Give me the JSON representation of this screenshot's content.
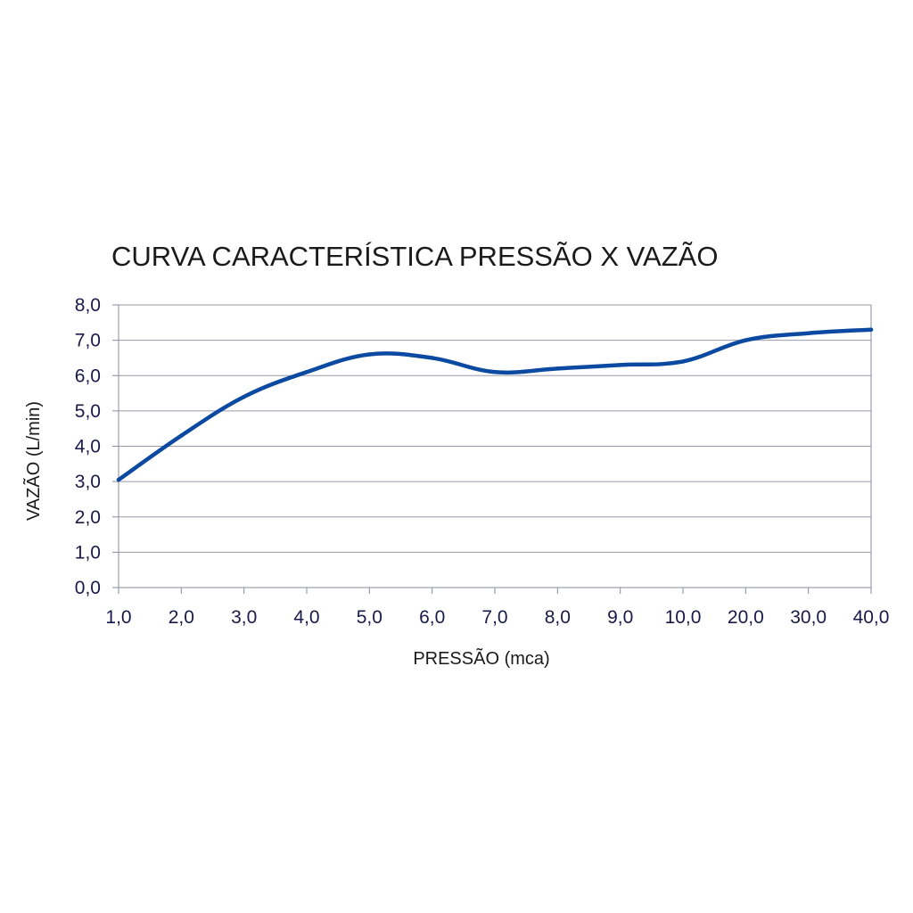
{
  "chart_data": {
    "type": "line",
    "title": "CURVA CARACTERÍSTICA PRESSÃO X VAZÃO",
    "xlabel": "PRESSÃO (mca)",
    "ylabel": "VAZÃO (L/min)",
    "categories": [
      "1,0",
      "2,0",
      "3,0",
      "4,0",
      "5,0",
      "6,0",
      "7,0",
      "8,0",
      "9,0",
      "10,0",
      "20,0",
      "30,0",
      "40,0"
    ],
    "x_axis_kind": "category",
    "ylim": [
      0,
      8
    ],
    "y_ticks": [
      "0,0",
      "1,0",
      "2,0",
      "3,0",
      "4,0",
      "5,0",
      "6,0",
      "7,0",
      "8,0"
    ],
    "y_tick_values": [
      0,
      1,
      2,
      3,
      4,
      5,
      6,
      7,
      8
    ],
    "grid": true,
    "legend": "none",
    "series": [
      {
        "color": "#0b4aa0",
        "points": [
          {
            "x": "1,0",
            "y": 3.05
          },
          {
            "x": "2,0",
            "y": 4.3
          },
          {
            "x": "3,0",
            "y": 5.4
          },
          {
            "x": "4,0",
            "y": 6.1
          },
          {
            "x": "5,0",
            "y": 6.6
          },
          {
            "x": "6,0",
            "y": 6.5
          },
          {
            "x": "7,0",
            "y": 6.1
          },
          {
            "x": "8,0",
            "y": 6.2
          },
          {
            "x": "9,0",
            "y": 6.3
          },
          {
            "x": "10,0",
            "y": 6.4
          },
          {
            "x": "20,0",
            "y": 7.0
          },
          {
            "x": "30,0",
            "y": 7.2
          },
          {
            "x": "40,0",
            "y": 7.3
          }
        ]
      }
    ]
  }
}
